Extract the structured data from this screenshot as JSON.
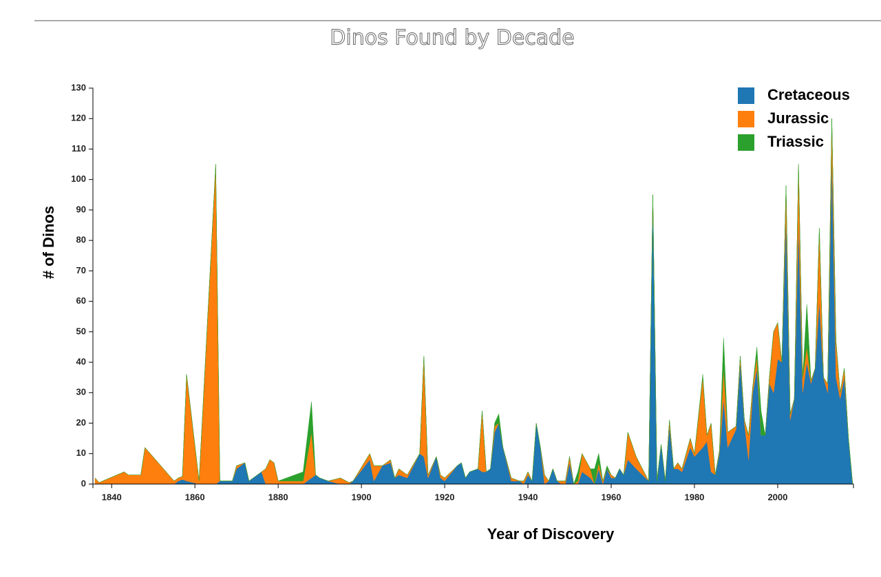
{
  "chart_data": {
    "type": "stacked-area",
    "title": "Dinos Found by Decade",
    "x_label": "Year of Discovery",
    "y_label": "# of Dinos",
    "xlim": [
      1835.5,
      2018.2
    ],
    "xticks": [
      1840,
      1860,
      1880,
      1900,
      1920,
      1940,
      1960,
      1980,
      2000
    ],
    "ylim": [
      0,
      130
    ],
    "yticks": [
      0,
      10,
      20,
      30,
      40,
      50,
      60,
      70,
      80,
      90,
      100,
      110,
      120,
      130
    ],
    "legend": "top-right",
    "x": [
      1836,
      1837,
      1843,
      1844,
      1847,
      1848,
      1855,
      1856,
      1857,
      1858,
      1861,
      1865,
      1866,
      1869,
      1870,
      1872,
      1873,
      1876,
      1877,
      1878,
      1879,
      1880,
      1886,
      1888,
      1889,
      1890,
      1892,
      1895,
      1897,
      1898,
      1902,
      1903,
      1905,
      1907,
      1908,
      1909,
      1911,
      1914,
      1915,
      1916,
      1918,
      1919,
      1920,
      1923,
      1924,
      1925,
      1926,
      1928,
      1929,
      1930,
      1931,
      1932,
      1933,
      1934,
      1936,
      1938,
      1939,
      1940,
      1941,
      1942,
      1943,
      1944,
      1945,
      1946,
      1947,
      1948,
      1949,
      1950,
      1951,
      1952,
      1953,
      1955,
      1956,
      1957,
      1958,
      1959,
      1960,
      1961,
      1962,
      1963,
      1964,
      1966,
      1969,
      1970,
      1971,
      1972,
      1973,
      1974,
      1975,
      1976,
      1977,
      1979,
      1980,
      1982,
      1983,
      1984,
      1985,
      1986,
      1987,
      1988,
      1989,
      1990,
      1991,
      1992,
      1993,
      1994,
      1995,
      1996,
      1997,
      1998,
      1999,
      2000,
      2001,
      2002,
      2003,
      2004,
      2005,
      2006,
      2007,
      2008,
      2009,
      2010,
      2011,
      2012,
      2013,
      2014,
      2015,
      2016,
      2017,
      2018
    ],
    "series": [
      {
        "name": "Cretaceous",
        "color": "#1f77b4",
        "values": [
          0,
          0,
          0,
          0,
          0,
          0,
          0,
          1,
          1.5,
          1,
          0,
          0,
          1,
          1,
          5,
          7,
          1,
          4,
          0,
          0,
          0,
          0,
          0,
          2,
          3,
          2,
          1,
          0,
          0,
          1,
          8,
          1,
          6,
          7,
          2,
          3,
          2,
          10,
          9,
          2,
          9,
          2,
          1,
          6,
          7,
          2,
          4,
          5,
          4,
          4,
          5,
          17,
          20,
          12,
          1,
          1,
          0,
          3,
          1,
          20,
          12,
          0,
          1,
          5,
          1,
          0,
          0,
          7,
          0,
          0,
          4,
          2,
          0,
          5,
          0,
          5,
          2,
          2,
          5,
          3,
          8,
          5,
          1,
          95,
          1,
          13,
          1,
          19,
          5,
          5,
          4,
          12,
          9,
          12,
          14,
          4,
          3,
          10,
          28,
          12,
          15,
          18,
          40,
          20,
          8,
          30,
          38,
          16,
          16,
          33,
          30,
          41,
          40,
          88,
          21,
          28,
          85,
          30,
          40,
          33,
          38,
          60,
          35,
          30,
          108,
          35,
          28,
          35,
          15,
          0
        ]
      },
      {
        "name": "Jurassic",
        "color": "#ff7f0e",
        "values": [
          2,
          0.5,
          4,
          3,
          3,
          12,
          1,
          1,
          1,
          35,
          1,
          105,
          0,
          0,
          1,
          0,
          0,
          0,
          5,
          8,
          7,
          1,
          1,
          15,
          0,
          0,
          0,
          2,
          0.5,
          0,
          2,
          5,
          0,
          1,
          0,
          2,
          1,
          0,
          33,
          1,
          0,
          1,
          1,
          0,
          0,
          0,
          0,
          0,
          20,
          0,
          0,
          2,
          0,
          0,
          1,
          0,
          1,
          1,
          0,
          0,
          0,
          3,
          0,
          0,
          0,
          1,
          1,
          2,
          0,
          1,
          6,
          3,
          0,
          2,
          1,
          0,
          1,
          0,
          0,
          0,
          9,
          4,
          0,
          0,
          0,
          0,
          0,
          2,
          0,
          2,
          1,
          3,
          1,
          23,
          2,
          16,
          0,
          1,
          10,
          5,
          3,
          1,
          2,
          1,
          8,
          2,
          4,
          0,
          0,
          2,
          20,
          12,
          0,
          10,
          2,
          0,
          20,
          5,
          5,
          1,
          0,
          24,
          0,
          3,
          12,
          12,
          2,
          3,
          0,
          0
        ]
      },
      {
        "name": "Triassic",
        "color": "#2ca02c",
        "values": [
          0,
          0,
          0,
          0,
          0,
          0,
          0,
          0,
          0,
          0,
          0,
          0,
          0,
          0,
          0,
          0,
          0,
          0,
          0,
          0,
          0,
          0,
          3,
          10,
          0,
          0,
          0,
          0,
          0,
          0,
          0,
          0,
          0,
          0,
          0,
          0,
          0,
          0,
          0,
          0,
          0,
          0,
          0,
          0,
          0,
          0,
          0,
          0,
          0,
          0,
          0,
          1,
          3,
          0,
          0,
          0,
          0,
          0,
          0,
          0,
          0,
          0,
          0,
          0,
          0,
          0,
          0,
          0,
          0,
          3,
          0,
          0,
          5,
          3,
          0,
          1,
          0,
          0,
          0,
          0,
          0,
          0,
          0,
          0,
          0,
          0,
          0,
          0,
          0,
          0,
          0,
          0,
          0,
          1,
          0,
          0,
          0,
          0,
          10,
          0,
          0,
          0,
          0,
          0,
          0,
          0,
          3,
          8,
          0,
          0,
          0,
          0,
          0,
          0,
          0,
          0,
          0,
          0,
          14,
          0,
          0,
          0,
          0,
          0,
          0,
          0,
          0,
          0,
          0,
          0
        ]
      }
    ]
  }
}
